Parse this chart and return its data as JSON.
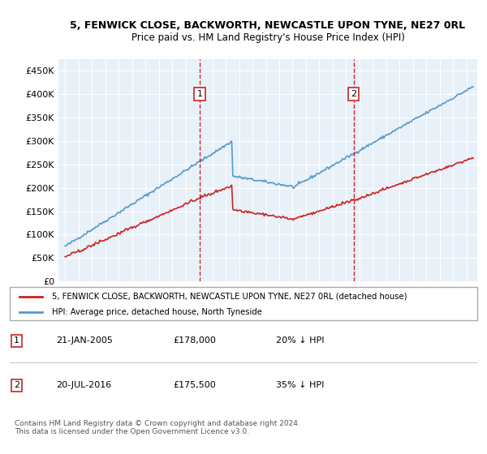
{
  "title1": "5, FENWICK CLOSE, BACKWORTH, NEWCASTLE UPON TYNE, NE27 0RL",
  "title2": "Price paid vs. HM Land Registry's House Price Index (HPI)",
  "bg_color": "#e8f0f8",
  "hpi_color": "#5599cc",
  "price_color": "#cc2222",
  "ylim": [
    0,
    475000
  ],
  "yticks": [
    0,
    50000,
    100000,
    150000,
    200000,
    250000,
    300000,
    350000,
    400000,
    450000
  ],
  "ytick_labels": [
    "£0",
    "£50K",
    "£100K",
    "£150K",
    "£200K",
    "£250K",
    "£300K",
    "£350K",
    "£400K",
    "£450K"
  ],
  "sale1_date": 2005.05,
  "sale1_price": 178000,
  "sale1_label": "1",
  "sale2_date": 2016.55,
  "sale2_price": 175500,
  "sale2_label": "2",
  "legend_line1": "5, FENWICK CLOSE, BACKWORTH, NEWCASTLE UPON TYNE, NE27 0RL (detached house)",
  "legend_line2": "HPI: Average price, detached house, North Tyneside",
  "annotation1_date": "21-JAN-2005",
  "annotation1_price": "£178,000",
  "annotation1_pct": "20% ↓ HPI",
  "annotation2_date": "20-JUL-2016",
  "annotation2_price": "£175,500",
  "annotation2_pct": "35% ↓ HPI",
  "footer": "Contains HM Land Registry data © Crown copyright and database right 2024.\nThis data is licensed under the Open Government Licence v3.0."
}
